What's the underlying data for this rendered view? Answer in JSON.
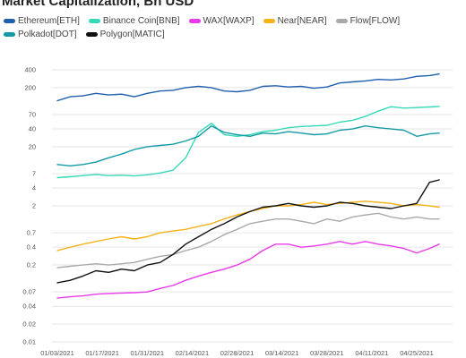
{
  "chart_data": {
    "type": "line",
    "title": "Market Capitalization, Bn USD",
    "xlabel": "",
    "ylabel": "",
    "yscale": "log",
    "ylim": [
      0.01,
      400
    ],
    "grid": "horizontal",
    "legend_position": "top",
    "y_ticks": [
      "400",
      "200",
      "70",
      "40",
      "20",
      "7",
      "4",
      "2",
      "0.7",
      "0.4",
      "0.2",
      "0.07",
      "0.04",
      "0.02",
      "0.01"
    ],
    "y_tick_values": [
      400,
      200,
      70,
      40,
      20,
      7,
      4,
      2,
      0.7,
      0.4,
      0.2,
      0.07,
      0.04,
      0.02,
      0.01
    ],
    "x_ticks": [
      "01/03/2021",
      "01/17/2021",
      "01/31/2021",
      "02/14/2021",
      "02/28/2021",
      "03/14/2021",
      "03/28/2021",
      "04/11/2021",
      "04/25/2021"
    ],
    "x_tick_dates": [
      "2021-01-03",
      "2021-01-17",
      "2021-01-31",
      "2021-02-14",
      "2021-02-28",
      "2021-03-14",
      "2021-03-28",
      "2021-04-11",
      "2021-04-25"
    ],
    "x": [
      "2021-01-03",
      "2021-01-07",
      "2021-01-11",
      "2021-01-15",
      "2021-01-19",
      "2021-01-23",
      "2021-01-27",
      "2021-01-31",
      "2021-02-04",
      "2021-02-08",
      "2021-02-12",
      "2021-02-16",
      "2021-02-20",
      "2021-02-24",
      "2021-02-28",
      "2021-03-04",
      "2021-03-08",
      "2021-03-12",
      "2021-03-16",
      "2021-03-20",
      "2021-03-24",
      "2021-03-28",
      "2021-04-01",
      "2021-04-05",
      "2021-04-09",
      "2021-04-13",
      "2021-04-17",
      "2021-04-21",
      "2021-04-25",
      "2021-04-29",
      "2021-05-02"
    ],
    "series": [
      {
        "name": "Ethereum[ETH]",
        "color": "#1f5fae",
        "values": [
          120,
          140,
          145,
          160,
          150,
          155,
          140,
          160,
          175,
          180,
          200,
          210,
          200,
          175,
          170,
          180,
          210,
          215,
          205,
          210,
          195,
          205,
          240,
          250,
          260,
          275,
          270,
          280,
          310,
          320,
          340
        ]
      },
      {
        "name": "Binance Coin[BNB]",
        "color": "#35d9b8",
        "values": [
          6,
          6.2,
          6.5,
          6.8,
          6.5,
          6.6,
          6.4,
          6.7,
          7.2,
          8,
          13,
          35,
          50,
          32,
          30,
          32,
          36,
          38,
          42,
          44,
          45,
          46,
          52,
          56,
          65,
          80,
          95,
          90,
          92,
          94,
          96
        ]
      },
      {
        "name": "WAX[WAXP]",
        "color": "#e83ae8",
        "values": [
          0.055,
          0.058,
          0.06,
          0.064,
          0.066,
          0.067,
          0.068,
          0.07,
          0.08,
          0.09,
          0.11,
          0.13,
          0.15,
          0.17,
          0.2,
          0.25,
          0.35,
          0.45,
          0.45,
          0.4,
          0.42,
          0.45,
          0.5,
          0.45,
          0.5,
          0.45,
          0.42,
          0.38,
          0.32,
          0.38,
          0.45
        ]
      },
      {
        "name": "Near[NEAR]",
        "color": "#f5b21b",
        "values": [
          0.35,
          0.4,
          0.45,
          0.5,
          0.55,
          0.6,
          0.55,
          0.6,
          0.7,
          0.75,
          0.8,
          0.9,
          1.0,
          1.2,
          1.4,
          1.6,
          1.8,
          2.0,
          2.0,
          2.1,
          2.3,
          2.1,
          2.2,
          2.3,
          2.4,
          2.3,
          2.2,
          2.0,
          2.1,
          2.0,
          1.9
        ]
      },
      {
        "name": "Flow[FLOW]",
        "color": "#a9a9a9",
        "values": [
          0.18,
          0.19,
          0.2,
          0.21,
          0.2,
          0.21,
          0.22,
          0.25,
          0.28,
          0.3,
          0.35,
          0.4,
          0.5,
          0.65,
          0.8,
          1.0,
          1.1,
          1.2,
          1.2,
          1.1,
          1.0,
          1.2,
          1.1,
          1.3,
          1.4,
          1.5,
          1.3,
          1.2,
          1.3,
          1.2,
          1.2
        ]
      },
      {
        "name": "Polkadot[DOT]",
        "color": "#139aa5",
        "values": [
          10,
          9.5,
          10,
          11,
          13,
          15,
          18,
          20,
          21,
          22,
          25,
          30,
          45,
          35,
          32,
          30,
          34,
          33,
          36,
          34,
          32,
          33,
          38,
          40,
          45,
          42,
          40,
          38,
          30,
          33,
          34
        ]
      },
      {
        "name": "Polygon[MATIC]",
        "color": "#111111",
        "values": [
          0.1,
          0.11,
          0.13,
          0.16,
          0.15,
          0.17,
          0.16,
          0.2,
          0.22,
          0.3,
          0.45,
          0.6,
          0.8,
          1.0,
          1.3,
          1.6,
          1.9,
          2.0,
          2.2,
          2.0,
          1.9,
          2.0,
          2.3,
          2.2,
          2.0,
          1.9,
          1.8,
          2.0,
          2.2,
          5.0,
          5.5
        ]
      }
    ]
  }
}
